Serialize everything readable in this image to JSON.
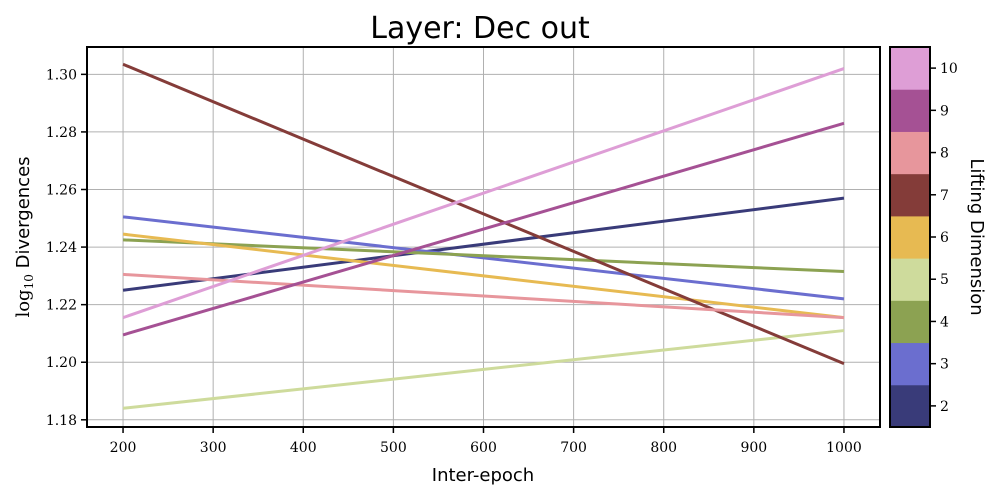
{
  "chart_data": {
    "type": "line",
    "title": "Layer: Dec out",
    "xlabel": "Inter-epoch",
    "ylabel": "log10 Divergences",
    "ylabel_prefix": "log",
    "ylabel_sub": "10",
    "ylabel_suffix": " Divergences",
    "xlim": [
      160,
      1040
    ],
    "ylim": [
      1.1775,
      1.3095
    ],
    "xticks": [
      200,
      300,
      400,
      500,
      600,
      700,
      800,
      900,
      1000
    ],
    "yticks": [
      1.18,
      1.2,
      1.22,
      1.24,
      1.26,
      1.28,
      1.3
    ],
    "ytick_labels": [
      "1.18",
      "1.20",
      "1.22",
      "1.24",
      "1.26",
      "1.28",
      "1.30"
    ],
    "grid": true,
    "series": [
      {
        "name": "2",
        "color": "#393b79",
        "x": [
          200,
          1000
        ],
        "y": [
          1.225,
          1.257
        ]
      },
      {
        "name": "3",
        "color": "#6b6ecf",
        "x": [
          200,
          1000
        ],
        "y": [
          1.2505,
          1.222
        ]
      },
      {
        "name": "4",
        "color": "#8ca252",
        "x": [
          200,
          1000
        ],
        "y": [
          1.2425,
          1.2315
        ]
      },
      {
        "name": "5",
        "color": "#cedb9c",
        "x": [
          200,
          1000
        ],
        "y": [
          1.184,
          1.211
        ]
      },
      {
        "name": "6",
        "color": "#e7ba52",
        "x": [
          200,
          1000
        ],
        "y": [
          1.2445,
          1.2155
        ]
      },
      {
        "name": "7",
        "color": "#843c39",
        "x": [
          200,
          1000
        ],
        "y": [
          1.3035,
          1.1995
        ]
      },
      {
        "name": "8",
        "color": "#e7969c",
        "x": [
          200,
          1000
        ],
        "y": [
          1.2305,
          1.2155
        ]
      },
      {
        "name": "9",
        "color": "#a55194",
        "x": [
          200,
          1000
        ],
        "y": [
          1.2095,
          1.283
        ]
      },
      {
        "name": "10",
        "color": "#de9ed6",
        "x": [
          200,
          1000
        ],
        "y": [
          1.2155,
          1.302
        ]
      }
    ],
    "colorbar": {
      "label": "Lifting Dimension",
      "range": [
        1.5,
        10.5
      ],
      "ticks": [
        2,
        3,
        4,
        5,
        6,
        7,
        8,
        9,
        10
      ],
      "tick_labels": [
        "2",
        "3",
        "4",
        "5",
        "6",
        "7",
        "8",
        "9",
        "10"
      ],
      "colors": [
        "#393b79",
        "#6b6ecf",
        "#8ca252",
        "#cedb9c",
        "#e7ba52",
        "#843c39",
        "#e7969c",
        "#a55194",
        "#de9ed6"
      ]
    }
  }
}
